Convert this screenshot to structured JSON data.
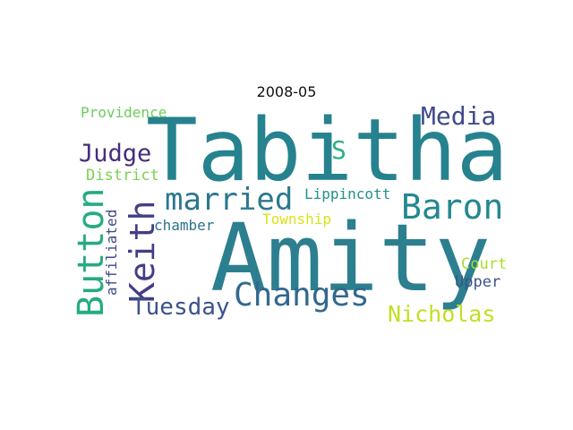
{
  "title": "2008-05",
  "words": [
    {
      "text": "Tabitha",
      "color": "#26828e"
    },
    {
      "text": "Amity",
      "color": "#2c7f8e"
    },
    {
      "text": "Baron",
      "color": "#23888e"
    },
    {
      "text": "Changes",
      "color": "#31688e"
    },
    {
      "text": "married",
      "color": "#2a788e"
    },
    {
      "text": "Keith",
      "color": "#433e85"
    },
    {
      "text": "Button",
      "color": "#25ab82"
    },
    {
      "text": "Media",
      "color": "#3e4a89"
    },
    {
      "text": "Judge",
      "color": "#472d7b"
    },
    {
      "text": "Tuesday",
      "color": "#3b528b"
    },
    {
      "text": "Nicholas",
      "color": "#c2df23"
    },
    {
      "text": "Providence",
      "color": "#6ccd5a"
    },
    {
      "text": "District",
      "color": "#7ad151"
    },
    {
      "text": "S",
      "color": "#2ab07f"
    },
    {
      "text": "Lippincott",
      "color": "#21918c"
    },
    {
      "text": "chamber",
      "color": "#2c728e"
    },
    {
      "text": "Township",
      "color": "#d8e219"
    },
    {
      "text": "affiliated",
      "color": "#3e4989"
    },
    {
      "text": "Court",
      "color": "#aadc32"
    },
    {
      "text": "Upper",
      "color": "#3b528b"
    }
  ]
}
